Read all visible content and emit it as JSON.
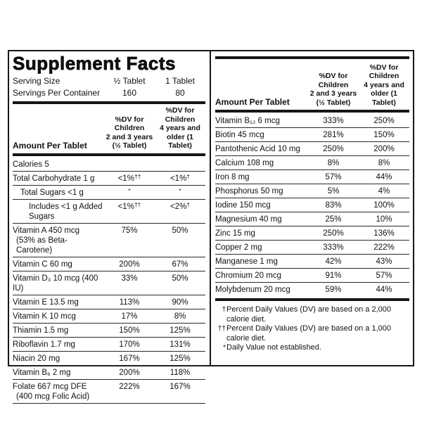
{
  "label": {
    "title": "Supplement Facts",
    "serving": {
      "rows": [
        {
          "name": "Serving Size",
          "v1": "½ Tablet",
          "v2": "1 Tablet"
        },
        {
          "name": "Servings Per Container",
          "v1": "160",
          "v2": "80"
        }
      ]
    },
    "header": {
      "amount_label": "Amount Per Tablet",
      "col1": "%DV for\nChildren\n2 and 3 years\n(½ Tablet)",
      "col2": "%DV for\nChildren\n4 years and\nolder (1 Tablet)"
    },
    "left_table": {
      "rows": [
        {
          "name": "Calories 5",
          "v1": "",
          "v1sup": "",
          "v2": "",
          "v2sup": ""
        },
        {
          "name": "Total Carbohydrate 1 g",
          "v1": "<1%",
          "v1sup": "††",
          "v2": "<1%",
          "v2sup": "†"
        },
        {
          "name": "Total Sugars <1 g",
          "indent": 1,
          "v1": "",
          "v1sup": "*",
          "v2": "",
          "v2sup": "*"
        },
        {
          "name": "Includes <1 g Added Sugars",
          "indent": 2,
          "v1": "<1%",
          "v1sup": "††",
          "v2": "<2%",
          "v2sup": "†"
        },
        {
          "name": "Vitamin A 450 mcg",
          "name2": "(53% as Beta-Carotene)",
          "v1": "75%",
          "v1sup": "",
          "v2": "50%",
          "v2sup": ""
        },
        {
          "name": "Vitamin C 60 mg",
          "v1": "200%",
          "v1sup": "",
          "v2": "67%",
          "v2sup": ""
        },
        {
          "name": "Vitamin D₃ 10 mcg (400 IU)",
          "v1": "33%",
          "v1sup": "",
          "v2": "50%",
          "v2sup": ""
        },
        {
          "name": "Vitamin E 13.5 mg",
          "v1": "113%",
          "v1sup": "",
          "v2": "90%",
          "v2sup": ""
        },
        {
          "name": "Vitamin K 10 mcg",
          "v1": "17%",
          "v1sup": "",
          "v2": "8%",
          "v2sup": ""
        },
        {
          "name": "Thiamin 1.5 mg",
          "v1": "150%",
          "v1sup": "",
          "v2": "125%",
          "v2sup": ""
        },
        {
          "name": "Riboflavin 1.7 mg",
          "v1": "170%",
          "v1sup": "",
          "v2": "131%",
          "v2sup": ""
        },
        {
          "name": "Niacin 20 mg",
          "v1": "167%",
          "v1sup": "",
          "v2": "125%",
          "v2sup": ""
        },
        {
          "name": "Vitamin B₆ 2 mg",
          "v1": "200%",
          "v1sup": "",
          "v2": "118%",
          "v2sup": ""
        },
        {
          "name": "Folate 667 mcg DFE",
          "name2": "(400 mcg Folic Acid)",
          "v1": "222%",
          "v1sup": "",
          "v2": "167%",
          "v2sup": ""
        }
      ]
    },
    "right_table": {
      "rows": [
        {
          "name": "Vitamin B₁₂ 6 mcg",
          "v1": "333%",
          "v1sup": "",
          "v2": "250%",
          "v2sup": ""
        },
        {
          "name": "Biotin 45 mcg",
          "v1": "281%",
          "v1sup": "",
          "v2": "150%",
          "v2sup": ""
        },
        {
          "name": "Pantothenic Acid 10 mg",
          "v1": "250%",
          "v1sup": "",
          "v2": "200%",
          "v2sup": ""
        },
        {
          "name": "Calcium 108 mg",
          "v1": "8%",
          "v1sup": "",
          "v2": "8%",
          "v2sup": ""
        },
        {
          "name": "Iron 8 mg",
          "v1": "57%",
          "v1sup": "",
          "v2": "44%",
          "v2sup": ""
        },
        {
          "name": "Phosphorus 50 mg",
          "v1": "5%",
          "v1sup": "",
          "v2": "4%",
          "v2sup": ""
        },
        {
          "name": "Iodine 150 mcg",
          "v1": "83%",
          "v1sup": "",
          "v2": "100%",
          "v2sup": ""
        },
        {
          "name": "Magnesium 40 mg",
          "v1": "25%",
          "v1sup": "",
          "v2": "10%",
          "v2sup": ""
        },
        {
          "name": "Zinc 15 mg",
          "v1": "250%",
          "v1sup": "",
          "v2": "136%",
          "v2sup": ""
        },
        {
          "name": "Copper 2 mg",
          "v1": "333%",
          "v1sup": "",
          "v2": "222%",
          "v2sup": ""
        },
        {
          "name": "Manganese 1 mg",
          "v1": "42%",
          "v1sup": "",
          "v2": "43%",
          "v2sup": ""
        },
        {
          "name": "Chromium 20 mcg",
          "v1": "91%",
          "v1sup": "",
          "v2": "57%",
          "v2sup": ""
        },
        {
          "name": "Molybdenum 20 mcg",
          "v1": "59%",
          "v1sup": "",
          "v2": "44%",
          "v2sup": ""
        }
      ]
    },
    "footnotes": [
      {
        "marker": "†",
        "text": "Percent Daily Values (DV) are based on a 2,000 calorie diet."
      },
      {
        "marker": "††",
        "text": "Percent Daily Values (DV) are based on a 1,000 calorie diet."
      },
      {
        "marker": "*",
        "text": "Daily Value not established."
      }
    ]
  }
}
